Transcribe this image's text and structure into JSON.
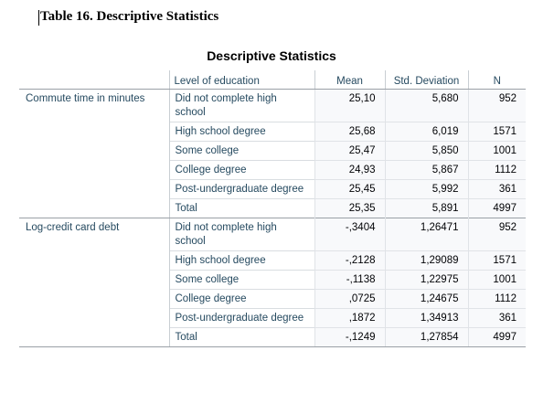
{
  "caption": "Table 16. Descriptive Statistics",
  "table": {
    "title": "Descriptive Statistics",
    "headers": {
      "level": "Level of education",
      "mean": "Mean",
      "std": "Std. Deviation",
      "n": "N"
    },
    "groups": [
      {
        "variable": "Commute time in minutes",
        "rows": [
          {
            "level": "Did not complete high school",
            "mean": "25,10",
            "std": "5,680",
            "n": "952"
          },
          {
            "level": "High school degree",
            "mean": "25,68",
            "std": "6,019",
            "n": "1571"
          },
          {
            "level": "Some college",
            "mean": "25,47",
            "std": "5,850",
            "n": "1001"
          },
          {
            "level": "College degree",
            "mean": "24,93",
            "std": "5,867",
            "n": "1112"
          },
          {
            "level": "Post-undergraduate degree",
            "mean": "25,45",
            "std": "5,992",
            "n": "361"
          },
          {
            "level": "Total",
            "mean": "25,35",
            "std": "5,891",
            "n": "4997"
          }
        ]
      },
      {
        "variable": "Log-credit card debt",
        "rows": [
          {
            "level": "Did not complete high school",
            "mean": "-,3404",
            "std": "1,26471",
            "n": "952"
          },
          {
            "level": "High school degree",
            "mean": "-,2128",
            "std": "1,29089",
            "n": "1571"
          },
          {
            "level": "Some college",
            "mean": "-,1138",
            "std": "1,22975",
            "n": "1001"
          },
          {
            "level": "College degree",
            "mean": ",0725",
            "std": "1,24675",
            "n": "1112"
          },
          {
            "level": "Post-undergraduate degree",
            "mean": ",1872",
            "std": "1,34913",
            "n": "361"
          },
          {
            "level": "Total",
            "mean": "-,1249",
            "std": "1,27854",
            "n": "4997"
          }
        ]
      }
    ]
  }
}
